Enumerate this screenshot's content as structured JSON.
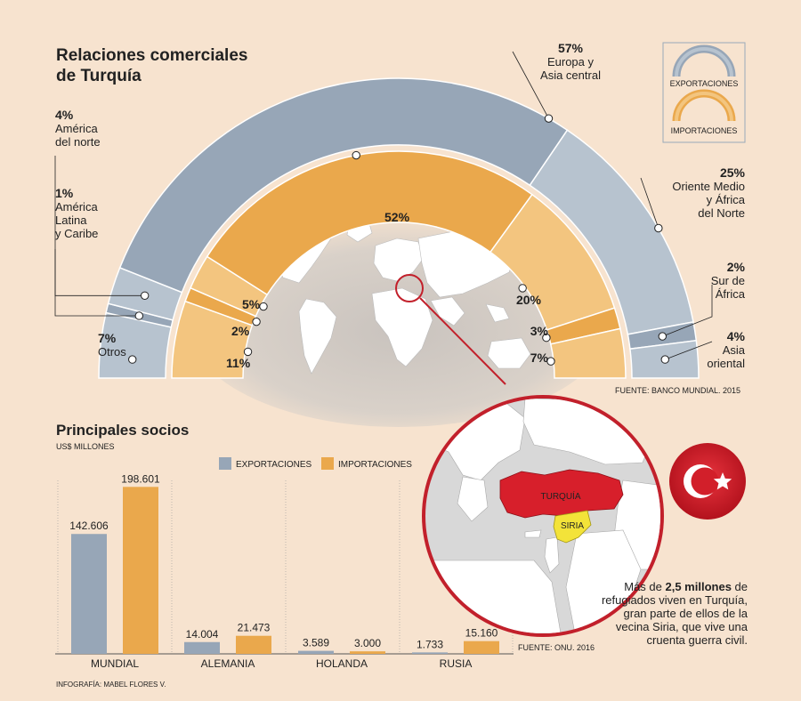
{
  "title_line1": "Relaciones comerciales",
  "title_line2": "de Turquía",
  "legend": {
    "exports": "EXPORTACIONES",
    "imports": "IMPORTACIONES"
  },
  "colors": {
    "background": "#f7e3cf",
    "exports_dark": "#97a6b7",
    "exports_light": "#b7c3cf",
    "imports_dark": "#eaa84c",
    "imports_light": "#f3c57f",
    "turkey": "#d71f2b",
    "syria": "#f3e339",
    "ocean": "#d8d8d8",
    "land": "#ffffff"
  },
  "exports_labels": [
    {
      "pct": "4%",
      "line1": "América",
      "line2": "del norte",
      "line3": ""
    },
    {
      "pct": "1%",
      "line1": "América",
      "line2": "Latina",
      "line3": "y Caribe"
    },
    {
      "pct": "7%",
      "line1": "Otros",
      "line2": "",
      "line3": ""
    },
    {
      "pct": "57%",
      "line1": "Europa y",
      "line2": "Asia central",
      "line3": ""
    },
    {
      "pct": "25%",
      "line1": "Oriente Medio",
      "line2": "y África",
      "line3": "del Norte"
    },
    {
      "pct": "2%",
      "line1": "Sur de",
      "line2": "África",
      "line3": ""
    },
    {
      "pct": "4%",
      "line1": "Asia",
      "line2": "oriental",
      "line3": ""
    }
  ],
  "imports_labels": [
    "5%",
    "2%",
    "11%",
    "52%",
    "20%",
    "3%",
    "7%"
  ],
  "source_top": "FUENTE: BANCO MUNDIAL. 2015",
  "partners_title": "Principales socios",
  "partners_unit": "US$ MILLONES",
  "source_map": "FUENTE: ONU. 2016",
  "credit": "INFOGRAFÍA: MABEL FLORES V.",
  "map_labels": {
    "turkey": "TURQUÍA",
    "syria": "SIRIA"
  },
  "note": {
    "pre": "Más de ",
    "bold": "2,5 millones",
    "post": " de refugiados viven en Turquía, gran parte de ellos de la vecina Siria, que vive una cruenta guerra civil."
  },
  "chart_data": [
    {
      "type": "pie",
      "title": "EXPORTACIONES",
      "categories": [
        "América Latina y Caribe",
        "América del norte",
        "Europa y Asia central",
        "Oriente Medio y África del Norte",
        "Sur de África",
        "Asia oriental",
        "Otros"
      ],
      "values": [
        1,
        4,
        57,
        25,
        2,
        4,
        7
      ]
    },
    {
      "type": "pie",
      "title": "IMPORTACIONES",
      "categories": [
        "América Latina y Caribe",
        "América del norte",
        "Europa y Asia central",
        "Oriente Medio y África del Norte",
        "Sur de África",
        "Asia oriental",
        "Otros"
      ],
      "values": [
        2,
        5,
        52,
        20,
        3,
        7,
        11
      ]
    },
    {
      "type": "bar",
      "title": "Principales socios",
      "ylabel": "US$ MILLONES",
      "categories": [
        "MUNDIAL",
        "ALEMANIA",
        "HOLANDA",
        "RUSIA"
      ],
      "series": [
        {
          "name": "EXPORTACIONES",
          "values": [
            142606,
            14004,
            3589,
            1733
          ],
          "labels": [
            "142.606",
            "14.004",
            "3.589",
            "1.733"
          ]
        },
        {
          "name": "IMPORTACIONES",
          "values": [
            198601,
            21473,
            3000,
            15160
          ],
          "labels": [
            "198.601",
            "21.473",
            "3.000",
            "15.160"
          ]
        }
      ],
      "ylim": [
        0,
        200000
      ],
      "grid": false
    }
  ]
}
